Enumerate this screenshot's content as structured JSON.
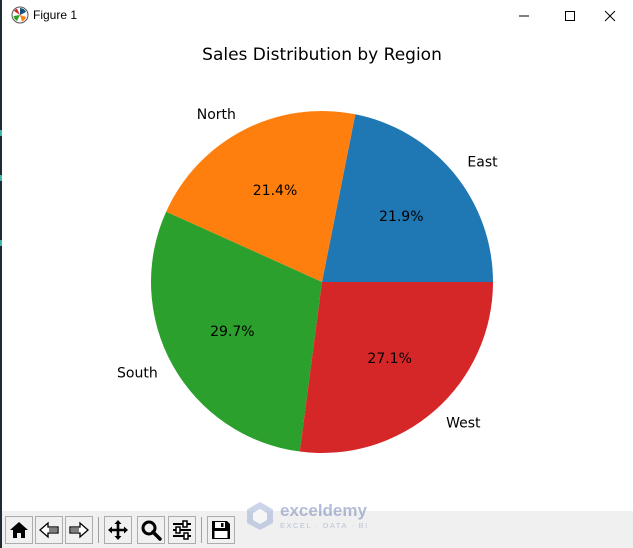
{
  "window": {
    "title": "Figure 1"
  },
  "chart_data": {
    "type": "pie",
    "title": "Sales Distribution by Region",
    "categories": [
      "East",
      "North",
      "South",
      "West"
    ],
    "values": [
      21.9,
      21.4,
      29.7,
      27.1
    ],
    "value_labels": [
      "21.9%",
      "21.4%",
      "29.7%",
      "27.1%"
    ],
    "colors": [
      "#1f77b4",
      "#ff7f0e",
      "#2ca02c",
      "#d62728"
    ],
    "start_angle_deg": 0,
    "direction": "counterclockwise"
  },
  "toolbar": {
    "buttons": [
      {
        "name": "home-button",
        "icon": "home-icon"
      },
      {
        "name": "back-button",
        "icon": "arrow-left-icon"
      },
      {
        "name": "forward-button",
        "icon": "arrow-right-icon"
      },
      {
        "name": "pan-button",
        "icon": "move-icon"
      },
      {
        "name": "zoom-button",
        "icon": "magnifier-icon"
      },
      {
        "name": "configure-subplots-button",
        "icon": "sliders-icon"
      },
      {
        "name": "save-button",
        "icon": "floppy-disk-icon"
      }
    ]
  },
  "watermark": {
    "name": "exceldemy",
    "tagline": "EXCEL · DATA · BI"
  }
}
